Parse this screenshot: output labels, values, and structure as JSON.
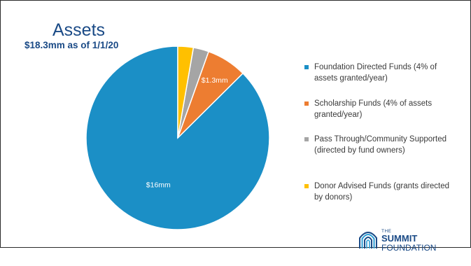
{
  "chart_data": {
    "type": "pie",
    "title": "Assets",
    "subtitle": "$18.3mm as of 1/1/20",
    "slices": [
      {
        "label": "Foundation Directed Funds (4% of assets granted/year)",
        "value": 16.0,
        "data_label": "$16mm",
        "color": "#1b8fc6"
      },
      {
        "label": "Scholarship Funds (4% of assets granted/year)",
        "value": 1.3,
        "data_label": "$1.3mm",
        "color": "#ed7d31"
      },
      {
        "label": "Pass Through/Community Supported (directed by fund owners)",
        "value": 0.5,
        "data_label": "",
        "color": "#a5a5a5"
      },
      {
        "label": "Donor Advised Funds (grants directed by donors)",
        "value": 0.5,
        "data_label": "",
        "color": "#ffc000"
      }
    ],
    "legend_position": "right"
  },
  "logo": {
    "the": "THE",
    "name": "SUMMIT",
    "sub": "FOUNDATION",
    "color": "#1a4a86"
  }
}
